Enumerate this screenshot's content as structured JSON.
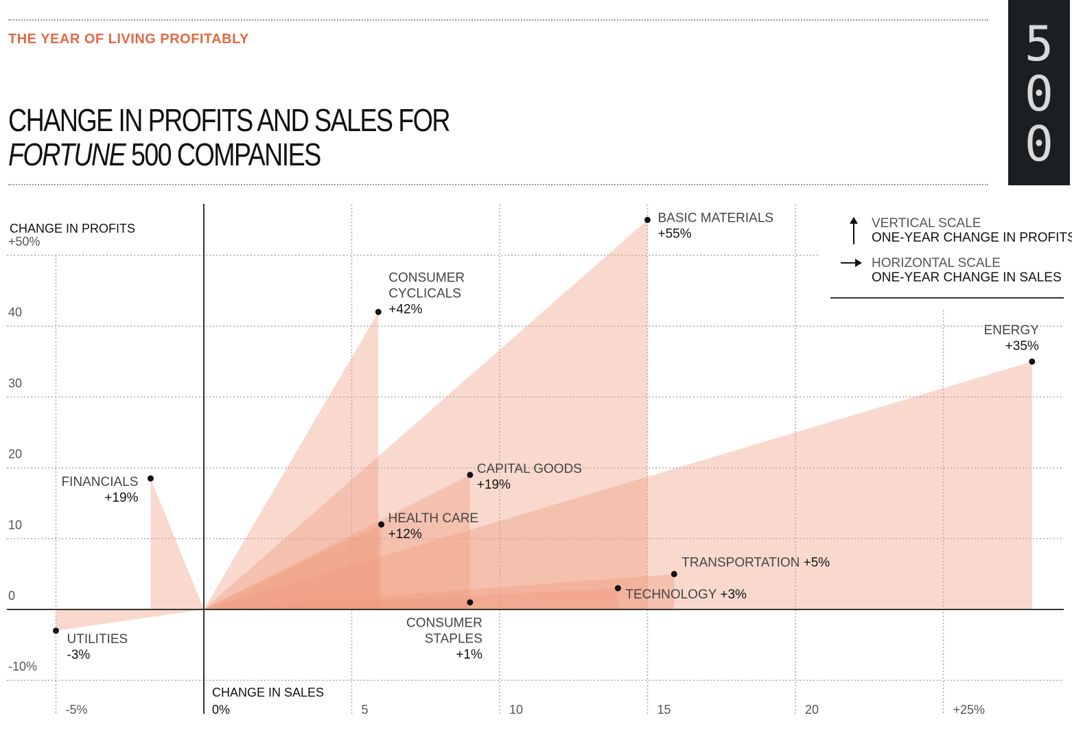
{
  "header": {
    "kicker": "THE YEAR OF LIVING PROFITABLY",
    "title_line1": "CHANGE IN PROFITS AND SALES FOR",
    "title_italic": "FORTUNE",
    "title_line2_rest": " 500 COMPANIES",
    "badge": [
      "5",
      "0",
      "0"
    ]
  },
  "colors": {
    "accent": "#e06a45",
    "fill": "#ef9a7e",
    "badge_bg": "#1c1f22"
  },
  "legend": {
    "vertical_label": "VERTICAL SCALE",
    "vertical_desc": "ONE-YEAR CHANGE IN PROFITS",
    "horizontal_label": "HORIZONTAL SCALE",
    "horizontal_desc": "ONE-YEAR CHANGE IN SALES"
  },
  "chart_data": {
    "type": "scatter",
    "y_axis_title": "CHANGE IN PROFITS",
    "x_axis_title": "CHANGE IN SALES",
    "ylim": [
      -10,
      55
    ],
    "xlim": [
      -7,
      29
    ],
    "x_ticks": [
      {
        "value": -5,
        "label": "-5%"
      },
      {
        "value": 0,
        "label": "0%"
      },
      {
        "value": 5,
        "label": "5"
      },
      {
        "value": 10,
        "label": "10"
      },
      {
        "value": 15,
        "label": "15"
      },
      {
        "value": 20,
        "label": "20"
      },
      {
        "value": 25,
        "label": "+25%"
      }
    ],
    "y_ticks": [
      {
        "value": 50,
        "label": "+50%"
      },
      {
        "value": 40,
        "label": "40"
      },
      {
        "value": 30,
        "label": "30"
      },
      {
        "value": 20,
        "label": "20"
      },
      {
        "value": 10,
        "label": "10"
      },
      {
        "value": 0,
        "label": "0"
      },
      {
        "value": -10,
        "label": "-10%"
      }
    ],
    "grid": true,
    "legend_position": "top-right",
    "points": [
      {
        "name": [
          "BASIC MATERIALS"
        ],
        "value_label": "+55%",
        "x": 15.0,
        "y": 55,
        "label_side": "right-up"
      },
      {
        "name": [
          "CONSUMER",
          "CYCLICALS"
        ],
        "value_label": "+42%",
        "x": 5.9,
        "y": 42,
        "label_side": "right-up"
      },
      {
        "name": [
          "ENERGY"
        ],
        "value_label": "+35%",
        "x": 28.0,
        "y": 35,
        "label_side": "above-left"
      },
      {
        "name": [
          "FINANCIALS"
        ],
        "value_label": "+19%",
        "x": -1.8,
        "y": 18.5,
        "label_side": "left"
      },
      {
        "name": [
          "CAPITAL GOODS"
        ],
        "value_label": "+19%",
        "x": 9.0,
        "y": 19,
        "label_side": "right"
      },
      {
        "name": [
          "HEALTH CARE"
        ],
        "value_label": "+12%",
        "x": 6.0,
        "y": 12,
        "label_side": "right"
      },
      {
        "name": [
          "TRANSPORTATION"
        ],
        "value_label": "+5%",
        "x": 15.9,
        "y": 5,
        "label_side": "inline-right"
      },
      {
        "name": [
          "TECHNOLOGY"
        ],
        "value_label": "+3%",
        "x": 14.0,
        "y": 3,
        "label_side": "inline-right"
      },
      {
        "name": [
          "CONSUMER",
          "STAPLES"
        ],
        "value_label": "+1%",
        "x": 9.0,
        "y": 1,
        "label_side": "below-left"
      },
      {
        "name": [
          "UTILITIES"
        ],
        "value_label": "-3%",
        "x": -5.0,
        "y": -3,
        "label_side": "below-right"
      }
    ]
  }
}
